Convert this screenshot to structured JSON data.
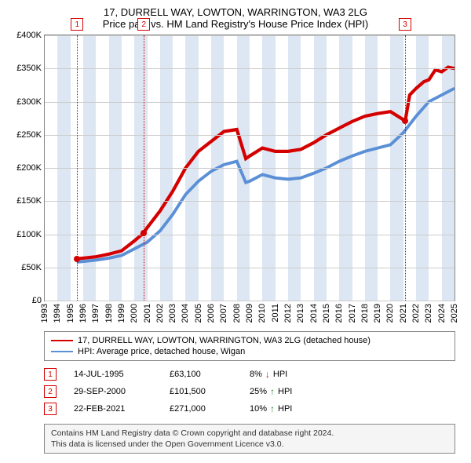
{
  "title_line1": "17, DURRELL WAY, LOWTON, WARRINGTON, WA3 2LG",
  "title_line2": "Price paid vs. HM Land Registry's House Price Index (HPI)",
  "chart": {
    "type": "line",
    "background_color": "#ffffff",
    "plot_border_color": "#888888",
    "grid_color": "#cccccc",
    "band_color": "#dde7f3",
    "x_years": [
      1993,
      1994,
      1995,
      1996,
      1997,
      1998,
      1999,
      2000,
      2001,
      2002,
      2003,
      2004,
      2005,
      2006,
      2007,
      2008,
      2009,
      2010,
      2011,
      2012,
      2013,
      2014,
      2015,
      2016,
      2017,
      2018,
      2019,
      2020,
      2021,
      2022,
      2023,
      2024,
      2025
    ],
    "xmin": 1993,
    "xmax": 2025,
    "ylim": [
      0,
      400000
    ],
    "ytick_step": 50000,
    "ytick_labels": [
      "£0",
      "£50K",
      "£100K",
      "£150K",
      "£200K",
      "£250K",
      "£300K",
      "£350K",
      "£400K"
    ],
    "label_fontsize": 11,
    "series": [
      {
        "name": "17, DURRELL WAY, LOWTON, WARRINGTON, WA3 2LG (detached house)",
        "color": "#d40000",
        "line_width": 1.4,
        "points": [
          [
            1995.5,
            63100
          ],
          [
            1996,
            64000
          ],
          [
            1997,
            66000
          ],
          [
            1998,
            70000
          ],
          [
            1999,
            75000
          ],
          [
            2000,
            90000
          ],
          [
            2000.7,
            101500
          ],
          [
            2001,
            110000
          ],
          [
            2002,
            135000
          ],
          [
            2003,
            165000
          ],
          [
            2004,
            200000
          ],
          [
            2005,
            225000
          ],
          [
            2006,
            240000
          ],
          [
            2007,
            255000
          ],
          [
            2008,
            258000
          ],
          [
            2008.7,
            214000
          ],
          [
            2009,
            218000
          ],
          [
            2010,
            230000
          ],
          [
            2011,
            225000
          ],
          [
            2012,
            225000
          ],
          [
            2013,
            228000
          ],
          [
            2014,
            238000
          ],
          [
            2015,
            250000
          ],
          [
            2016,
            260000
          ],
          [
            2017,
            270000
          ],
          [
            2018,
            278000
          ],
          [
            2019,
            282000
          ],
          [
            2020,
            285000
          ],
          [
            2021.15,
            271000
          ],
          [
            2021.5,
            310000
          ],
          [
            2022,
            320000
          ],
          [
            2022.6,
            330000
          ],
          [
            2023,
            333000
          ],
          [
            2023.5,
            348000
          ],
          [
            2024,
            345000
          ],
          [
            2024.5,
            352000
          ],
          [
            2025,
            350000
          ]
        ]
      },
      {
        "name": "HPI: Average price, detached house, Wigan",
        "color": "#5b8fd6",
        "line_width": 1.3,
        "points": [
          [
            1995.5,
            58000
          ],
          [
            1996,
            59000
          ],
          [
            1997,
            61000
          ],
          [
            1998,
            64000
          ],
          [
            1999,
            68000
          ],
          [
            2000,
            78000
          ],
          [
            2001,
            88000
          ],
          [
            2002,
            105000
          ],
          [
            2003,
            130000
          ],
          [
            2004,
            160000
          ],
          [
            2005,
            180000
          ],
          [
            2006,
            195000
          ],
          [
            2007,
            205000
          ],
          [
            2008,
            210000
          ],
          [
            2008.7,
            178000
          ],
          [
            2009,
            180000
          ],
          [
            2010,
            190000
          ],
          [
            2011,
            185000
          ],
          [
            2012,
            183000
          ],
          [
            2013,
            185000
          ],
          [
            2014,
            192000
          ],
          [
            2015,
            200000
          ],
          [
            2016,
            210000
          ],
          [
            2017,
            218000
          ],
          [
            2018,
            225000
          ],
          [
            2019,
            230000
          ],
          [
            2020,
            235000
          ],
          [
            2021,
            253000
          ],
          [
            2022,
            278000
          ],
          [
            2023,
            300000
          ],
          [
            2024,
            310000
          ],
          [
            2025,
            320000
          ]
        ]
      }
    ],
    "markers": [
      {
        "n": "1",
        "year": 1995.53,
        "value": 63100,
        "color": "#d40000"
      },
      {
        "n": "2",
        "year": 2000.74,
        "value": 101500,
        "color": "#d40000"
      },
      {
        "n": "3",
        "year": 2021.14,
        "value": 271000,
        "color": "#d40000"
      }
    ]
  },
  "legend": [
    {
      "color": "#d40000",
      "label": "17, DURRELL WAY, LOWTON, WARRINGTON, WA3 2LG (detached house)"
    },
    {
      "color": "#5b8fd6",
      "label": "HPI: Average price, detached house, Wigan"
    }
  ],
  "marker_rows": [
    {
      "n": "1",
      "color": "#d40000",
      "date": "14-JUL-1995",
      "price": "£63,100",
      "delta": "8%",
      "dir": "↓",
      "dir_color": "#d40000",
      "suffix": "HPI"
    },
    {
      "n": "2",
      "color": "#d40000",
      "date": "29-SEP-2000",
      "price": "£101,500",
      "delta": "25%",
      "dir": "↑",
      "dir_color": "#2e7d32",
      "suffix": "HPI"
    },
    {
      "n": "3",
      "color": "#d40000",
      "date": "22-FEB-2021",
      "price": "£271,000",
      "delta": "10%",
      "dir": "↑",
      "dir_color": "#2e7d32",
      "suffix": "HPI"
    }
  ],
  "attribution": {
    "line1": "Contains HM Land Registry data © Crown copyright and database right 2024.",
    "line2": "This data is licensed under the Open Government Licence v3.0."
  }
}
